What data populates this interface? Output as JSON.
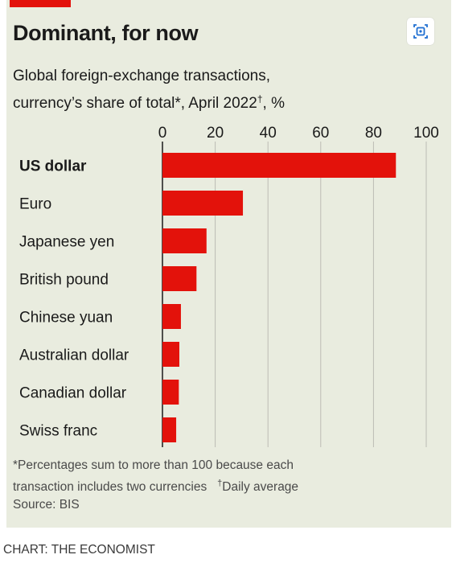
{
  "header": {
    "title": "Dominant, for now",
    "subtitle_line1": "Global foreign-exchange transactions,",
    "subtitle_line2_a": "currency’s share of total*, April 2022",
    "subtitle_line2_sup": "†",
    "subtitle_line2_b": ", %",
    "share_icon": "share-icon"
  },
  "chart_data": {
    "type": "bar",
    "orientation": "horizontal",
    "categories": [
      "US dollar",
      "Euro",
      "Japanese yen",
      "British pound",
      "Chinese yuan",
      "Australian dollar",
      "Canadian dollar",
      "Swiss franc"
    ],
    "values": [
      88.5,
      30.5,
      16.7,
      12.9,
      7.0,
      6.4,
      6.2,
      5.2
    ],
    "xlim": [
      0,
      100
    ],
    "xticks": [
      "0",
      "20",
      "40",
      "60",
      "80",
      "100"
    ],
    "tick_values": [
      0,
      20,
      40,
      60,
      80,
      100
    ],
    "bold_category": "US dollar",
    "bar_color": "#e3120b",
    "grid": true
  },
  "notes": {
    "line1": "*Percentages sum to more than 100 because each",
    "line2_a": "transaction includes two currencies",
    "line2_sup": "†",
    "line2_b": "Daily average",
    "line3": "Source: BIS"
  },
  "credit": "CHART: THE ECONOMIST",
  "colors": {
    "background": "#e9ecdf",
    "accent": "#e3120b",
    "grid": "#bcbcb4"
  }
}
